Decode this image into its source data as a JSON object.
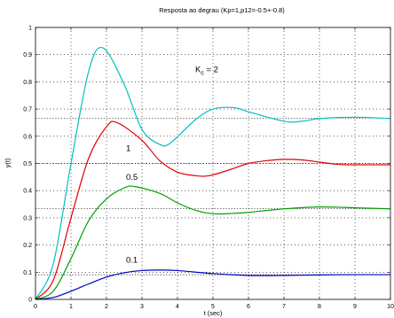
{
  "chart_data": {
    "type": "line",
    "title": "Resposta ao degrau (Kp=1,p12=-0.5+-0.8)",
    "xlabel": "t (sec)",
    "ylabel": "y(t)",
    "xlim": [
      0,
      10
    ],
    "ylim": [
      0,
      1
    ],
    "xticks": [
      "0",
      "1",
      "2",
      "3",
      "4",
      "5",
      "6",
      "7",
      "8",
      "9",
      "10"
    ],
    "yticks": [
      "0",
      "0.1",
      "0.2",
      "0.3",
      "0.4",
      "0.5",
      "0.6",
      "0.7",
      "0.8",
      "0.9",
      "1"
    ],
    "grid": true,
    "steady_state_lines": [
      0.0909,
      0.3333,
      0.5,
      0.6667
    ],
    "annotations": [
      {
        "text": "K",
        "sub": "c",
        "rest": " = 2",
        "x": 4.5,
        "y": 0.835
      },
      {
        "text": "1",
        "x": 2.55,
        "y": 0.545
      },
      {
        "text": "0.5",
        "x": 2.55,
        "y": 0.44
      },
      {
        "text": "0.1",
        "x": 2.55,
        "y": 0.135
      }
    ],
    "series": [
      {
        "color": "#00c0c0",
        "x": [
          0,
          0.5,
          1,
          1.5,
          1.9,
          2.5,
          3,
          3.5,
          3.8,
          4.5,
          5,
          5.6,
          6,
          7,
          7.5,
          8,
          9,
          10
        ],
        "values": [
          0,
          0.13,
          0.5,
          0.84,
          0.925,
          0.79,
          0.625,
          0.57,
          0.575,
          0.66,
          0.7,
          0.705,
          0.69,
          0.655,
          0.655,
          0.665,
          0.67,
          0.665
        ]
      },
      {
        "color": "#e00000",
        "x": [
          0,
          0.5,
          1,
          1.5,
          2.0,
          2.3,
          3,
          3.5,
          4,
          4.5,
          4.9,
          5.5,
          6,
          6.5,
          7,
          7.5,
          8,
          8.5,
          9,
          10
        ],
        "values": [
          0,
          0.07,
          0.3,
          0.52,
          0.635,
          0.65,
          0.585,
          0.51,
          0.468,
          0.455,
          0.455,
          0.478,
          0.5,
          0.51,
          0.515,
          0.513,
          0.505,
          0.497,
          0.495,
          0.495
        ]
      },
      {
        "color": "#00a000",
        "x": [
          0,
          0.5,
          1,
          1.5,
          2,
          2.5,
          2.8,
          3.5,
          4,
          4.5,
          5,
          5.5,
          6,
          7,
          8,
          9,
          10
        ],
        "values": [
          0,
          0.03,
          0.15,
          0.29,
          0.37,
          0.41,
          0.415,
          0.39,
          0.355,
          0.328,
          0.315,
          0.316,
          0.32,
          0.333,
          0.34,
          0.337,
          0.333
        ]
      },
      {
        "color": "#0000c0",
        "x": [
          0,
          0.5,
          1,
          1.5,
          2,
          2.5,
          3,
          3.5,
          4,
          5,
          6,
          7,
          8,
          9,
          10
        ],
        "values": [
          0,
          0.007,
          0.03,
          0.057,
          0.082,
          0.098,
          0.106,
          0.108,
          0.106,
          0.095,
          0.088,
          0.088,
          0.09,
          0.091,
          0.091
        ]
      }
    ]
  }
}
